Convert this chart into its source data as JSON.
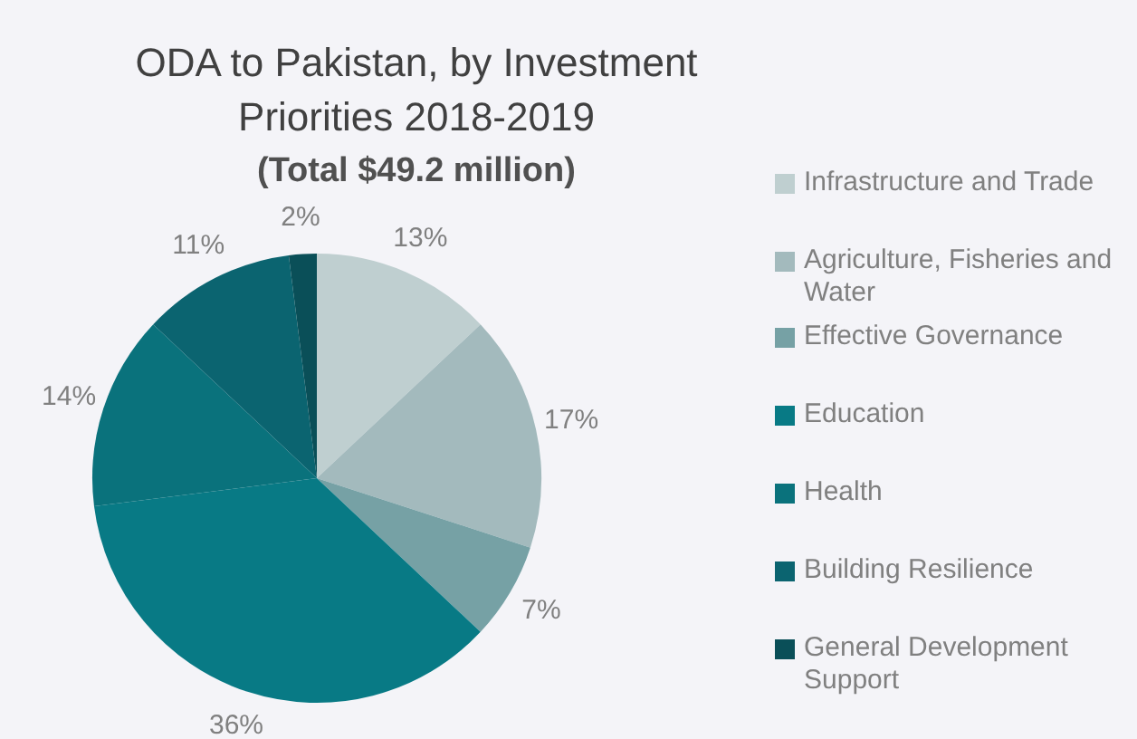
{
  "chart_data": {
    "type": "pie",
    "title": "ODA to Pakistan, by Investment Priorities 2018-2019",
    "subtitle": "(Total $49.2 million)",
    "categories": [
      "Infrastructure and Trade",
      "Agriculture, Fisheries and Water",
      "Effective Governance",
      "Education",
      "Health",
      "Building Resilience",
      "General Development Support"
    ],
    "values": [
      13,
      17,
      7,
      36,
      14,
      11,
      2
    ],
    "value_labels": [
      "13%",
      "17%",
      "7%",
      "36%",
      "14%",
      "11%",
      "2%"
    ],
    "colors": [
      "#bfcfd0",
      "#a3babd",
      "#76a1a5",
      "#087a85",
      "#0a727c",
      "#0b6470",
      "#0a4f58"
    ],
    "legend": "right"
  }
}
